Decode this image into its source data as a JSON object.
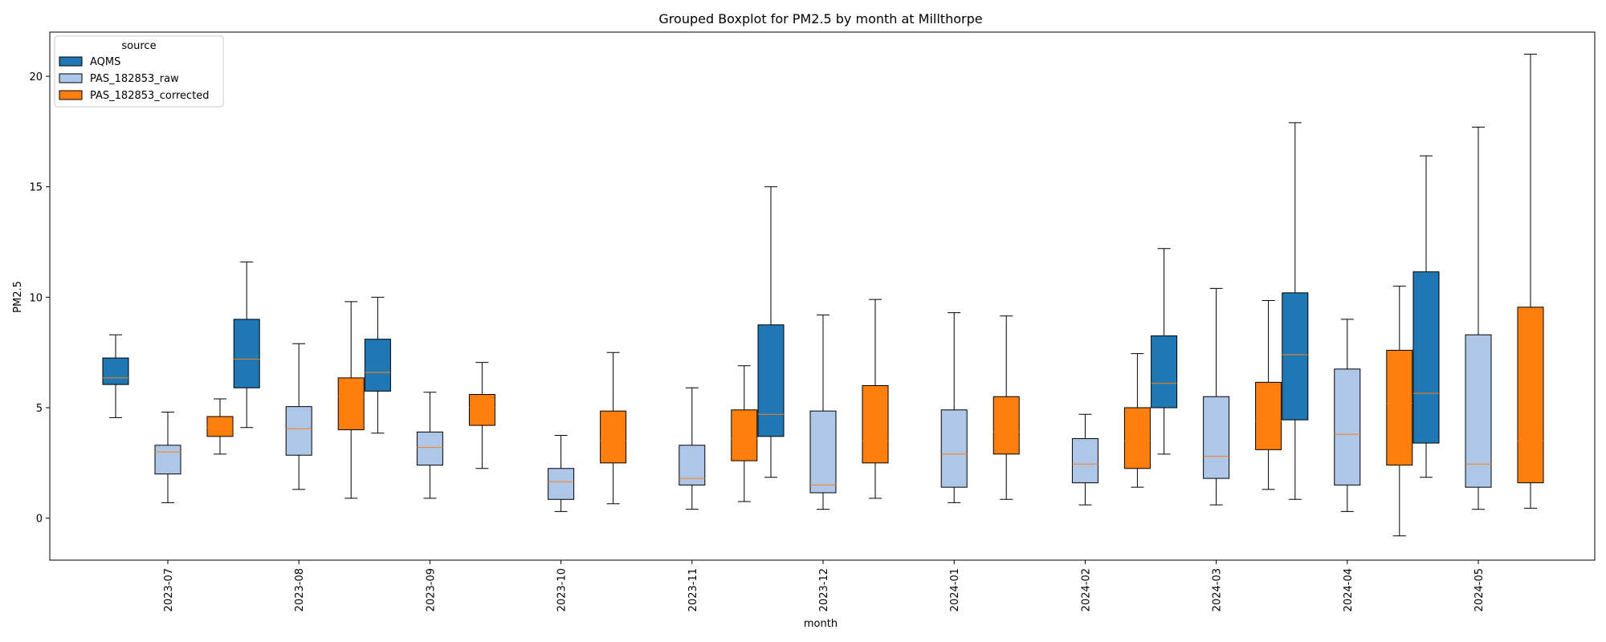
{
  "chart_data": {
    "type": "box",
    "title": "Grouped Boxplot for PM2.5 by month at Millthorpe",
    "xlabel": "month",
    "ylabel": "PM2.5",
    "ylim": [
      -1.9,
      22
    ],
    "yticks": [
      0,
      5,
      10,
      15,
      20
    ],
    "grid": false,
    "legend": {
      "title": "source",
      "placement": "top-left",
      "entries": [
        "AQMS",
        "PAS_182853_raw",
        "PAS_182853_corrected"
      ]
    },
    "categories": [
      "2023-07",
      "2023-08",
      "2023-09",
      "2023-10",
      "2023-11",
      "2023-12",
      "2024-01",
      "2024-02",
      "2024-03",
      "2024-04",
      "2024-05"
    ],
    "series": [
      {
        "name": "AQMS",
        "color": "#1f77b4",
        "boxes": [
          {
            "category": "2023-07",
            "whislo": 4.55,
            "q1": 6.05,
            "med": 6.35,
            "q3": 7.25,
            "whishi": 8.3
          },
          {
            "category": "2023-08",
            "whislo": 4.1,
            "q1": 5.9,
            "med": 7.2,
            "q3": 9.0,
            "whishi": 11.6
          },
          {
            "category": "2023-09",
            "whislo": 3.85,
            "q1": 5.75,
            "med": 6.6,
            "q3": 8.1,
            "whishi": 10.0
          },
          {
            "category": "2023-12",
            "whislo": 1.85,
            "q1": 3.7,
            "med": 4.7,
            "q3": 8.75,
            "whishi": 15.0
          },
          {
            "category": "2024-03",
            "whislo": 2.9,
            "q1": 5.0,
            "med": 6.1,
            "q3": 8.25,
            "whishi": 12.2
          },
          {
            "category": "2024-04",
            "whislo": 0.85,
            "q1": 4.45,
            "med": 7.4,
            "q3": 10.2,
            "whishi": 17.9
          },
          {
            "category": "2024-05",
            "whislo": 1.85,
            "q1": 3.4,
            "med": 5.65,
            "q3": 11.15,
            "whishi": 16.4
          }
        ]
      },
      {
        "name": "PAS_182853_raw",
        "color": "#aec7e8",
        "boxes": [
          {
            "category": "2023-07",
            "whislo": 0.7,
            "q1": 2.0,
            "med": 3.0,
            "q3": 3.3,
            "whishi": 4.8
          },
          {
            "category": "2023-08",
            "whislo": 1.3,
            "q1": 2.85,
            "med": 4.05,
            "q3": 5.05,
            "whishi": 7.9
          },
          {
            "category": "2023-09",
            "whislo": 0.9,
            "q1": 2.4,
            "med": 3.2,
            "q3": 3.9,
            "whishi": 5.7
          },
          {
            "category": "2023-10",
            "whislo": 0.3,
            "q1": 0.85,
            "med": 1.65,
            "q3": 2.25,
            "whishi": 3.75
          },
          {
            "category": "2023-11",
            "whislo": 0.4,
            "q1": 1.5,
            "med": 1.8,
            "q3": 3.3,
            "whishi": 5.9
          },
          {
            "category": "2023-12",
            "whislo": 0.4,
            "q1": 1.15,
            "med": 1.5,
            "q3": 4.85,
            "whishi": 9.2
          },
          {
            "category": "2024-01",
            "whislo": 0.7,
            "q1": 1.4,
            "med": 2.9,
            "q3": 4.9,
            "whishi": 9.3
          },
          {
            "category": "2024-02",
            "whislo": 0.6,
            "q1": 1.6,
            "med": 2.45,
            "q3": 3.6,
            "whishi": 4.7
          },
          {
            "category": "2024-03",
            "whislo": 0.6,
            "q1": 1.8,
            "med": 2.8,
            "q3": 5.5,
            "whishi": 10.4
          },
          {
            "category": "2024-04",
            "whislo": 0.3,
            "q1": 1.5,
            "med": 3.8,
            "q3": 6.75,
            "whishi": 9.0
          },
          {
            "category": "2024-05",
            "whislo": 0.4,
            "q1": 1.4,
            "med": 2.45,
            "q3": 8.3,
            "whishi": 17.7
          }
        ]
      },
      {
        "name": "PAS_182853_corrected",
        "color": "#ff7f0e",
        "boxes": [
          {
            "category": "2023-07",
            "whislo": 2.9,
            "q1": 3.7,
            "med": 4.1,
            "q3": 4.6,
            "whishi": 5.4
          },
          {
            "category": "2023-08",
            "whislo": 0.9,
            "q1": 4.0,
            "med": 5.5,
            "q3": 6.35,
            "whishi": 9.8
          },
          {
            "category": "2023-09",
            "whislo": 2.25,
            "q1": 4.2,
            "med": 5.0,
            "q3": 5.6,
            "whishi": 7.05
          },
          {
            "category": "2023-10",
            "whislo": 0.65,
            "q1": 2.5,
            "med": 3.5,
            "q3": 4.85,
            "whishi": 7.5
          },
          {
            "category": "2023-11",
            "whislo": 0.75,
            "q1": 2.6,
            "med": 3.6,
            "q3": 4.9,
            "whishi": 6.9
          },
          {
            "category": "2023-12",
            "whislo": 0.9,
            "q1": 2.5,
            "med": 3.5,
            "q3": 6.0,
            "whishi": 9.9
          },
          {
            "category": "2024-01",
            "whislo": 0.85,
            "q1": 2.9,
            "med": 3.9,
            "q3": 5.5,
            "whishi": 9.15
          },
          {
            "category": "2024-02",
            "whislo": 1.4,
            "q1": 2.25,
            "med": 3.5,
            "q3": 5.0,
            "whishi": 7.45
          },
          {
            "category": "2024-03",
            "whislo": 1.3,
            "q1": 3.1,
            "med": 4.4,
            "q3": 6.15,
            "whishi": 9.85
          },
          {
            "category": "2024-04",
            "whislo": -0.8,
            "q1": 2.4,
            "med": 5.2,
            "q3": 7.6,
            "whishi": 10.5
          },
          {
            "category": "2024-05",
            "whislo": 0.45,
            "q1": 1.6,
            "med": 3.5,
            "q3": 9.55,
            "whishi": 21.0
          }
        ]
      }
    ]
  }
}
